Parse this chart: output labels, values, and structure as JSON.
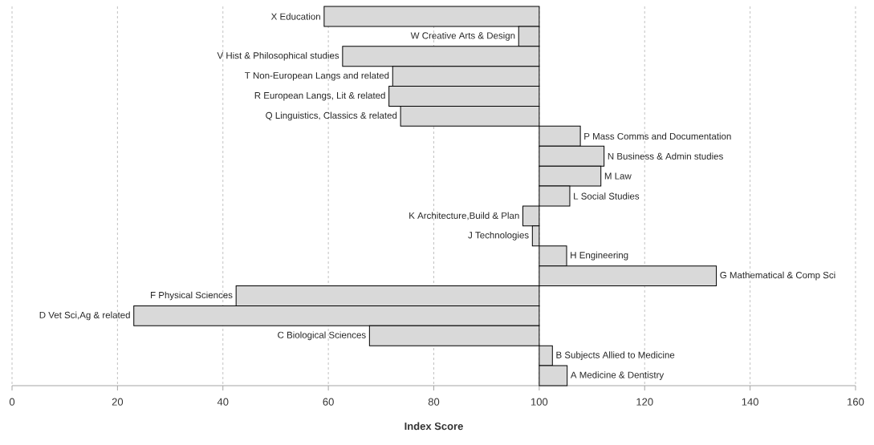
{
  "chart_data": {
    "type": "bar",
    "orientation": "horizontal",
    "xlabel": "Index Score",
    "categories": [
      "X Education",
      "W Creative Arts & Design",
      "V Hist & Philosophical studies",
      "T Non-European Langs and related",
      "R European Langs, Lit & related",
      "Q Linguistics, Classics & related",
      "P Mass Comms and Documentation",
      "N Business & Admin studies",
      "M Law",
      "L Social Studies",
      "K Architecture,Build & Plan",
      "J Technologies",
      "H Engineering",
      "G Mathematical & Comp Sci",
      "F Physical Sciences",
      "D Vet Sci,Ag & related",
      "C Biological Sciences",
      "B Subjects Allied to Medicine",
      "A Medicine & Dentistry"
    ],
    "base": [
      100,
      100,
      100,
      100,
      100,
      100,
      100,
      100,
      100,
      100,
      100,
      100,
      100,
      100,
      100,
      100,
      100,
      100,
      100
    ],
    "values": [
      -40.8,
      -3.9,
      -37.3,
      -27.8,
      -28.5,
      -26.3,
      7.8,
      12.3,
      11.7,
      5.8,
      -3.1,
      -1.3,
      5.2,
      33.6,
      -57.5,
      -76.9,
      -32.2,
      2.5,
      5.3
    ],
    "color": "#d9d9d9",
    "xlim": [
      0,
      160
    ],
    "xticks": [
      0,
      20,
      40,
      60,
      80,
      100,
      120,
      140,
      160
    ],
    "grid": "x",
    "tick_labels": "x"
  }
}
